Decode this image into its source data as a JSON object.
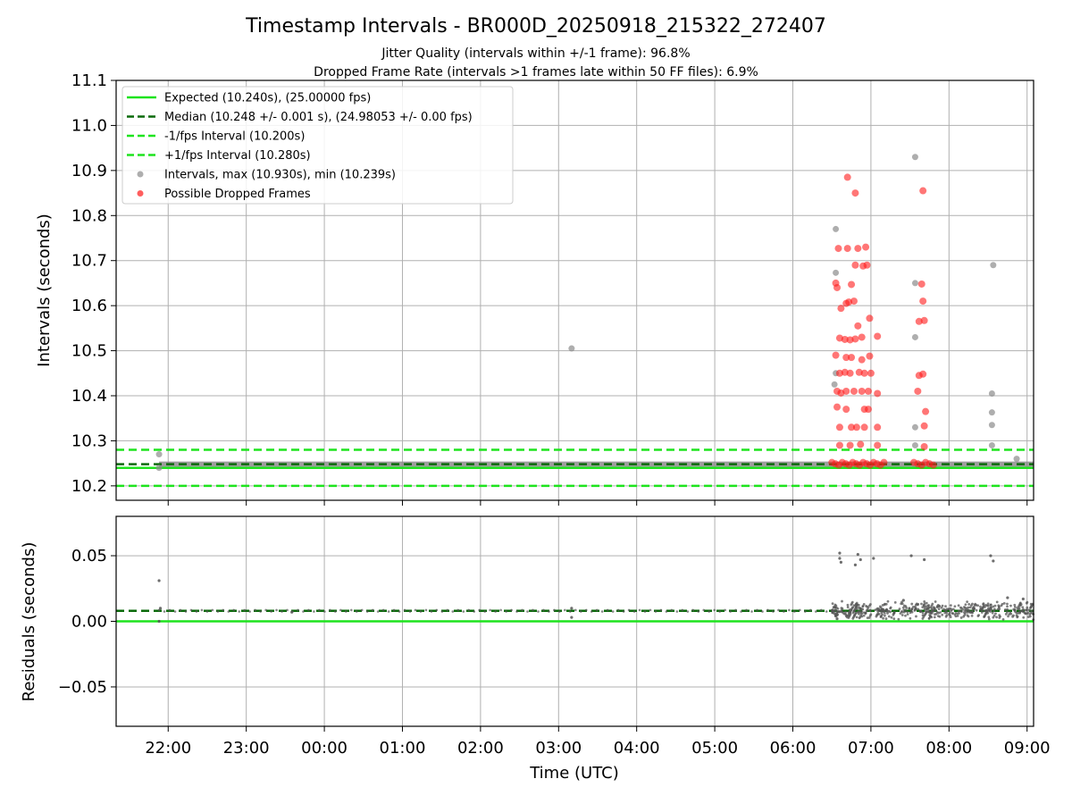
{
  "title": "Timestamp Intervals - BR000D_20250918_215322_272407",
  "subtitle_1": "Jitter Quality (intervals within +/-1 frame): 96.8%",
  "subtitle_2": "Dropped Frame Rate (intervals >1 frames late within 50 FF files): 6.9%",
  "colors": {
    "expected": "#1ee41e",
    "median": "#0a6a0a",
    "bounds": "#1ee41e",
    "intervals": "#8c8c8c",
    "dropped": "#ff1a1a",
    "residual_points": "#555555",
    "grid": "#b0b0b0"
  },
  "chart_data": [
    {
      "type": "scatter",
      "panel": "top",
      "ylabel": "Intervals (seconds)",
      "xlabel": "",
      "ylim": [
        10.168,
        11.1
      ],
      "xlim": [
        "21:20",
        "09:05"
      ],
      "grid": true,
      "legend_placement": "upper-left",
      "y_ticks": [
        "10.2",
        "10.3",
        "10.4",
        "10.5",
        "10.6",
        "10.7",
        "10.8",
        "10.9",
        "11.0",
        "11.1"
      ],
      "legend": [
        {
          "label": "Expected (10.240s), (25.00000 fps)",
          "style": "solid",
          "color_key": "expected"
        },
        {
          "label": "Median (10.248 +/- 0.001 s), (24.98053 +/- 0.00 fps)",
          "style": "dashed",
          "color_key": "median"
        },
        {
          "label": "-1/fps Interval (10.200s)",
          "style": "dashed",
          "color_key": "bounds"
        },
        {
          "label": "+1/fps Interval (10.280s)",
          "style": "dashed",
          "color_key": "bounds"
        },
        {
          "label": "Intervals, max (10.930s), min (10.239s)",
          "style": "point",
          "color_key": "intervals"
        },
        {
          "label": "Possible Dropped Frames",
          "style": "point",
          "color_key": "dropped"
        }
      ],
      "reference_lines": [
        {
          "y": 10.24,
          "style": "solid",
          "color_key": "expected"
        },
        {
          "y": 10.248,
          "style": "dashed",
          "color_key": "median"
        },
        {
          "y": 10.2,
          "style": "dashed",
          "color_key": "bounds"
        },
        {
          "y": 10.28,
          "style": "dashed",
          "color_key": "bounds"
        }
      ],
      "baseline_band": {
        "x_start": "21:53",
        "x_end": "09:05",
        "y_low": 10.242,
        "y_high": 10.254
      },
      "intervals_points": [
        {
          "x": "21:53",
          "y": 10.27
        },
        {
          "x": "21:53",
          "y": 10.24
        },
        {
          "x": "03:10",
          "y": 10.505
        },
        {
          "x": "06:33",
          "y": 10.77
        },
        {
          "x": "06:33",
          "y": 10.673
        },
        {
          "x": "06:33",
          "y": 10.45
        },
        {
          "x": "06:32",
          "y": 10.425
        },
        {
          "x": "07:34",
          "y": 10.93
        },
        {
          "x": "07:34",
          "y": 10.65
        },
        {
          "x": "07:34",
          "y": 10.53
        },
        {
          "x": "07:34",
          "y": 10.33
        },
        {
          "x": "07:34",
          "y": 10.29
        },
        {
          "x": "08:34",
          "y": 10.69
        },
        {
          "x": "08:33",
          "y": 10.405
        },
        {
          "x": "08:33",
          "y": 10.363
        },
        {
          "x": "08:33",
          "y": 10.335
        },
        {
          "x": "08:33",
          "y": 10.29
        },
        {
          "x": "08:52",
          "y": 10.26
        }
      ],
      "dropped_points": [
        {
          "x": "06:42",
          "y": 10.885
        },
        {
          "x": "06:48",
          "y": 10.85
        },
        {
          "x": "07:40",
          "y": 10.855
        },
        {
          "x": "06:35",
          "y": 10.727
        },
        {
          "x": "06:42",
          "y": 10.727
        },
        {
          "x": "06:50",
          "y": 10.727
        },
        {
          "x": "06:56",
          "y": 10.73
        },
        {
          "x": "06:48",
          "y": 10.69
        },
        {
          "x": "06:54",
          "y": 10.688
        },
        {
          "x": "06:57",
          "y": 10.69
        },
        {
          "x": "06:33",
          "y": 10.65
        },
        {
          "x": "06:34",
          "y": 10.64
        },
        {
          "x": "06:45",
          "y": 10.647
        },
        {
          "x": "06:37",
          "y": 10.594
        },
        {
          "x": "06:41",
          "y": 10.605
        },
        {
          "x": "06:43",
          "y": 10.608
        },
        {
          "x": "06:47",
          "y": 10.61
        },
        {
          "x": "06:50",
          "y": 10.555
        },
        {
          "x": "06:59",
          "y": 10.572
        },
        {
          "x": "06:36",
          "y": 10.528
        },
        {
          "x": "06:40",
          "y": 10.525
        },
        {
          "x": "06:44",
          "y": 10.524
        },
        {
          "x": "06:48",
          "y": 10.526
        },
        {
          "x": "06:53",
          "y": 10.53
        },
        {
          "x": "07:05",
          "y": 10.532
        },
        {
          "x": "06:33",
          "y": 10.49
        },
        {
          "x": "06:41",
          "y": 10.485
        },
        {
          "x": "06:45",
          "y": 10.485
        },
        {
          "x": "06:53",
          "y": 10.48
        },
        {
          "x": "06:59",
          "y": 10.488
        },
        {
          "x": "06:36",
          "y": 10.45
        },
        {
          "x": "06:40",
          "y": 10.452
        },
        {
          "x": "06:44",
          "y": 10.45
        },
        {
          "x": "06:51",
          "y": 10.452
        },
        {
          "x": "06:55",
          "y": 10.45
        },
        {
          "x": "07:00",
          "y": 10.45
        },
        {
          "x": "06:34",
          "y": 10.41
        },
        {
          "x": "06:37",
          "y": 10.406
        },
        {
          "x": "06:41",
          "y": 10.41
        },
        {
          "x": "06:47",
          "y": 10.41
        },
        {
          "x": "06:53",
          "y": 10.41
        },
        {
          "x": "06:58",
          "y": 10.41
        },
        {
          "x": "07:05",
          "y": 10.405
        },
        {
          "x": "06:34",
          "y": 10.375
        },
        {
          "x": "06:41",
          "y": 10.37
        },
        {
          "x": "06:55",
          "y": 10.37
        },
        {
          "x": "06:58",
          "y": 10.37
        },
        {
          "x": "06:36",
          "y": 10.33
        },
        {
          "x": "06:45",
          "y": 10.33
        },
        {
          "x": "06:49",
          "y": 10.33
        },
        {
          "x": "06:55",
          "y": 10.33
        },
        {
          "x": "07:05",
          "y": 10.33
        },
        {
          "x": "06:36",
          "y": 10.29
        },
        {
          "x": "06:44",
          "y": 10.29
        },
        {
          "x": "06:52",
          "y": 10.292
        },
        {
          "x": "07:05",
          "y": 10.29
        },
        {
          "x": "07:36",
          "y": 10.41
        },
        {
          "x": "07:37",
          "y": 10.445
        },
        {
          "x": "07:40",
          "y": 10.448
        },
        {
          "x": "07:37",
          "y": 10.565
        },
        {
          "x": "07:41",
          "y": 10.567
        },
        {
          "x": "07:40",
          "y": 10.61
        },
        {
          "x": "07:39",
          "y": 10.648
        },
        {
          "x": "07:42",
          "y": 10.365
        },
        {
          "x": "07:41",
          "y": 10.333
        },
        {
          "x": "07:41",
          "y": 10.287
        }
      ],
      "dropped_cluster": [
        {
          "x_start": "06:30",
          "x_end": "07:10",
          "y": 10.249
        },
        {
          "x_start": "07:33",
          "x_end": "07:48",
          "y": 10.249
        }
      ]
    },
    {
      "type": "scatter",
      "panel": "bottom",
      "ylabel": "Residuals (seconds)",
      "xlabel": "Time (UTC)",
      "ylim": [
        -0.08,
        0.08
      ],
      "xlim": [
        "21:20",
        "09:05"
      ],
      "grid": true,
      "y_ticks": [
        "−0.05",
        "0.00",
        "0.05"
      ],
      "x_ticks": [
        "22:00",
        "23:00",
        "00:00",
        "01:00",
        "02:00",
        "03:00",
        "04:00",
        "05:00",
        "06:00",
        "07:00",
        "08:00",
        "09:00"
      ],
      "reference_lines": [
        {
          "y": 0.0,
          "style": "solid",
          "color_key": "expected"
        },
        {
          "y": 0.008,
          "style": "dashed",
          "color_key": "median"
        }
      ],
      "residual_points": [
        {
          "x": "21:53",
          "y": 0.031
        },
        {
          "x": "21:53",
          "y": 0.0
        },
        {
          "x": "21:54",
          "y": 0.01
        },
        {
          "x": "23:35",
          "y": 0.007
        },
        {
          "x": "03:10",
          "y": 0.003
        },
        {
          "x": "03:10",
          "y": 0.01
        },
        {
          "x": "06:36",
          "y": 0.052
        },
        {
          "x": "06:36",
          "y": 0.048
        },
        {
          "x": "06:37",
          "y": 0.045
        },
        {
          "x": "06:48",
          "y": 0.043
        },
        {
          "x": "06:50",
          "y": 0.051
        },
        {
          "x": "06:52",
          "y": 0.047
        },
        {
          "x": "07:02",
          "y": 0.048
        },
        {
          "x": "07:31",
          "y": 0.05
        },
        {
          "x": "07:41",
          "y": 0.047
        },
        {
          "x": "08:32",
          "y": 0.05
        },
        {
          "x": "08:34",
          "y": 0.046
        },
        {
          "x": "06:32",
          "y": 0.006
        },
        {
          "x": "06:33",
          "y": 0.004
        },
        {
          "x": "06:34",
          "y": 0.002
        },
        {
          "x": "08:45",
          "y": 0.018
        },
        {
          "x": "08:57",
          "y": 0.017
        },
        {
          "x": "07:25",
          "y": 0.016
        }
      ],
      "residual_cluster": {
        "x_start": "06:30",
        "x_end": "09:05",
        "y_low": 0.001,
        "y_high": 0.016
      },
      "residual_baseline": {
        "x_start": "21:53",
        "x_end": "06:30",
        "y": 0.008
      }
    }
  ]
}
